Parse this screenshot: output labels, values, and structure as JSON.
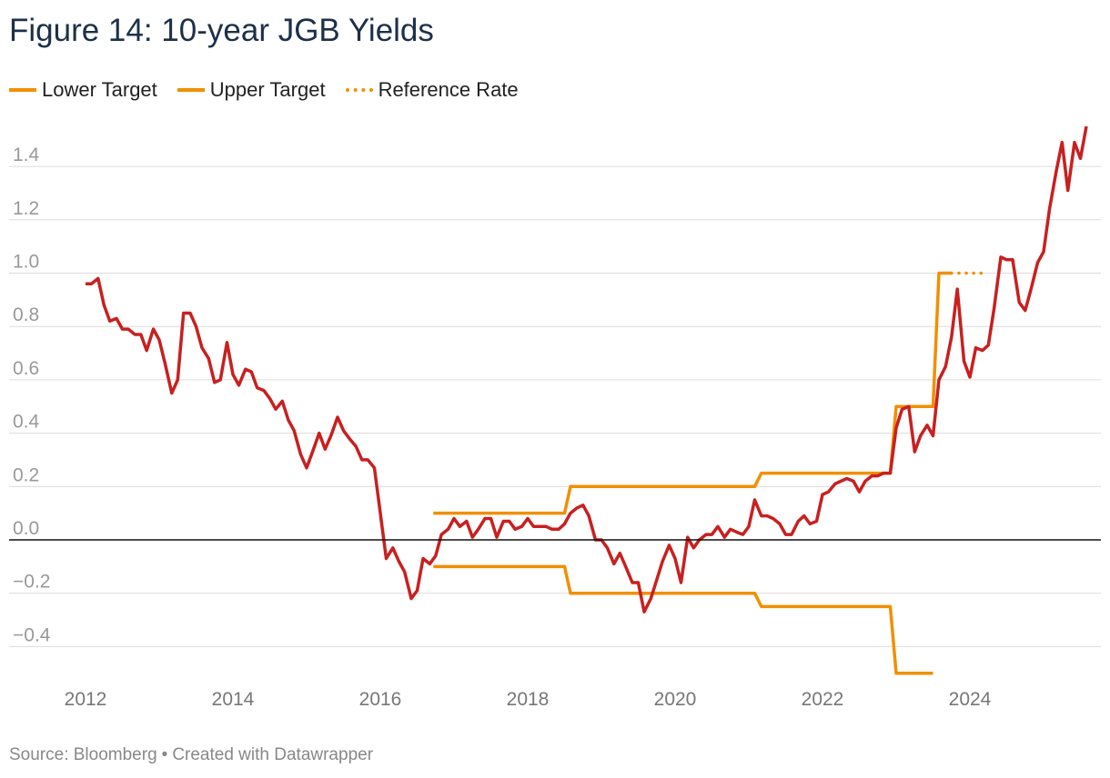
{
  "title": "Figure 14: 10-year JGB Yields",
  "footer": {
    "source": "Source: Bloomberg",
    "separator": "•",
    "credit": "Created with Datawrapper"
  },
  "colors": {
    "yield": "#c8201f",
    "target": "#f18f01",
    "grid": "#dcdcdc",
    "zero_line": "#111111",
    "tick_text": "#999999"
  },
  "chart_data": {
    "type": "line",
    "title": "Figure 14: 10-year JGB Yields",
    "xlabel": "",
    "ylabel": "",
    "xlim": [
      2012,
      2025.7
    ],
    "ylim": [
      -0.5,
      1.55
    ],
    "x_ticks": [
      2012,
      2014,
      2016,
      2018,
      2020,
      2022,
      2024
    ],
    "y_ticks": [
      -0.4,
      -0.2,
      0.0,
      0.2,
      0.4,
      0.6,
      0.8,
      1.0,
      1.2,
      1.4
    ],
    "y_tick_labels": [
      "−0.4",
      "−0.2",
      "0.0",
      "0.2",
      "0.4",
      "0.6",
      "0.8",
      "1.0",
      "1.2",
      "1.4"
    ],
    "grid": true,
    "legend_position": "top-left",
    "legend": [
      {
        "label": "Lower Target",
        "style": "solid"
      },
      {
        "label": "Upper Target",
        "style": "solid"
      },
      {
        "label": "Reference Rate",
        "style": "dotted"
      }
    ],
    "series": [
      {
        "name": "Lower Target",
        "color": "#f18f01",
        "style": "solid",
        "points": [
          [
            2016.72,
            -0.1
          ],
          [
            2018.5,
            -0.1
          ],
          [
            2018.58,
            -0.2
          ],
          [
            2021.08,
            -0.2
          ],
          [
            2021.17,
            -0.25
          ],
          [
            2022.92,
            -0.25
          ],
          [
            2023.0,
            -0.5
          ],
          [
            2023.5,
            -0.5
          ]
        ]
      },
      {
        "name": "Upper Target",
        "color": "#f18f01",
        "style": "solid",
        "points": [
          [
            2016.72,
            0.1
          ],
          [
            2018.5,
            0.1
          ],
          [
            2018.58,
            0.2
          ],
          [
            2021.08,
            0.2
          ],
          [
            2021.17,
            0.25
          ],
          [
            2022.92,
            0.25
          ],
          [
            2023.0,
            0.5
          ],
          [
            2023.5,
            0.5
          ],
          [
            2023.58,
            1.0
          ],
          [
            2023.75,
            1.0
          ]
        ]
      },
      {
        "name": "Reference Rate",
        "color": "#f18f01",
        "style": "dotted",
        "points": [
          [
            2023.75,
            1.0
          ],
          [
            2024.25,
            1.0
          ]
        ]
      },
      {
        "name": "10-year JGB Yield",
        "color": "#c8201f",
        "style": "solid",
        "points": [
          [
            2012.0,
            0.96
          ],
          [
            2012.08,
            0.96
          ],
          [
            2012.17,
            0.98
          ],
          [
            2012.25,
            0.88
          ],
          [
            2012.33,
            0.82
          ],
          [
            2012.42,
            0.83
          ],
          [
            2012.5,
            0.79
          ],
          [
            2012.58,
            0.79
          ],
          [
            2012.67,
            0.77
          ],
          [
            2012.75,
            0.77
          ],
          [
            2012.83,
            0.71
          ],
          [
            2012.92,
            0.79
          ],
          [
            2013.0,
            0.75
          ],
          [
            2013.08,
            0.66
          ],
          [
            2013.17,
            0.55
          ],
          [
            2013.25,
            0.6
          ],
          [
            2013.33,
            0.85
          ],
          [
            2013.42,
            0.85
          ],
          [
            2013.5,
            0.8
          ],
          [
            2013.58,
            0.72
          ],
          [
            2013.67,
            0.68
          ],
          [
            2013.75,
            0.59
          ],
          [
            2013.83,
            0.6
          ],
          [
            2013.92,
            0.74
          ],
          [
            2014.0,
            0.62
          ],
          [
            2014.08,
            0.58
          ],
          [
            2014.17,
            0.64
          ],
          [
            2014.25,
            0.63
          ],
          [
            2014.33,
            0.57
          ],
          [
            2014.42,
            0.56
          ],
          [
            2014.5,
            0.53
          ],
          [
            2014.58,
            0.49
          ],
          [
            2014.67,
            0.52
          ],
          [
            2014.75,
            0.45
          ],
          [
            2014.83,
            0.41
          ],
          [
            2014.92,
            0.32
          ],
          [
            2015.0,
            0.27
          ],
          [
            2015.08,
            0.33
          ],
          [
            2015.17,
            0.4
          ],
          [
            2015.25,
            0.34
          ],
          [
            2015.33,
            0.39
          ],
          [
            2015.42,
            0.46
          ],
          [
            2015.5,
            0.41
          ],
          [
            2015.58,
            0.38
          ],
          [
            2015.67,
            0.35
          ],
          [
            2015.75,
            0.3
          ],
          [
            2015.83,
            0.3
          ],
          [
            2015.92,
            0.27
          ],
          [
            2016.0,
            0.1
          ],
          [
            2016.08,
            -0.07
          ],
          [
            2016.17,
            -0.03
          ],
          [
            2016.25,
            -0.08
          ],
          [
            2016.33,
            -0.12
          ],
          [
            2016.42,
            -0.22
          ],
          [
            2016.5,
            -0.19
          ],
          [
            2016.58,
            -0.07
          ],
          [
            2016.67,
            -0.09
          ],
          [
            2016.75,
            -0.06
          ],
          [
            2016.83,
            0.02
          ],
          [
            2016.92,
            0.04
          ],
          [
            2017.0,
            0.08
          ],
          [
            2017.08,
            0.05
          ],
          [
            2017.17,
            0.07
          ],
          [
            2017.25,
            0.01
          ],
          [
            2017.33,
            0.04
          ],
          [
            2017.42,
            0.08
          ],
          [
            2017.5,
            0.08
          ],
          [
            2017.58,
            0.01
          ],
          [
            2017.67,
            0.07
          ],
          [
            2017.75,
            0.07
          ],
          [
            2017.83,
            0.04
          ],
          [
            2017.92,
            0.05
          ],
          [
            2018.0,
            0.08
          ],
          [
            2018.08,
            0.05
          ],
          [
            2018.17,
            0.05
          ],
          [
            2018.25,
            0.05
          ],
          [
            2018.33,
            0.04
          ],
          [
            2018.42,
            0.04
          ],
          [
            2018.5,
            0.06
          ],
          [
            2018.58,
            0.1
          ],
          [
            2018.67,
            0.12
          ],
          [
            2018.75,
            0.13
          ],
          [
            2018.83,
            0.09
          ],
          [
            2018.92,
            0.0
          ],
          [
            2019.0,
            0.0
          ],
          [
            2019.08,
            -0.03
          ],
          [
            2019.17,
            -0.09
          ],
          [
            2019.25,
            -0.05
          ],
          [
            2019.33,
            -0.1
          ],
          [
            2019.42,
            -0.16
          ],
          [
            2019.5,
            -0.16
          ],
          [
            2019.58,
            -0.27
          ],
          [
            2019.67,
            -0.22
          ],
          [
            2019.75,
            -0.15
          ],
          [
            2019.83,
            -0.08
          ],
          [
            2019.92,
            -0.02
          ],
          [
            2020.0,
            -0.07
          ],
          [
            2020.08,
            -0.16
          ],
          [
            2020.17,
            0.01
          ],
          [
            2020.25,
            -0.03
          ],
          [
            2020.33,
            0.0
          ],
          [
            2020.42,
            0.02
          ],
          [
            2020.5,
            0.02
          ],
          [
            2020.58,
            0.05
          ],
          [
            2020.67,
            0.01
          ],
          [
            2020.75,
            0.04
          ],
          [
            2020.83,
            0.03
          ],
          [
            2020.92,
            0.02
          ],
          [
            2021.0,
            0.05
          ],
          [
            2021.08,
            0.15
          ],
          [
            2021.17,
            0.09
          ],
          [
            2021.25,
            0.09
          ],
          [
            2021.33,
            0.08
          ],
          [
            2021.42,
            0.06
          ],
          [
            2021.5,
            0.02
          ],
          [
            2021.58,
            0.02
          ],
          [
            2021.67,
            0.07
          ],
          [
            2021.75,
            0.09
          ],
          [
            2021.83,
            0.06
          ],
          [
            2021.92,
            0.07
          ],
          [
            2022.0,
            0.17
          ],
          [
            2022.08,
            0.18
          ],
          [
            2022.17,
            0.21
          ],
          [
            2022.25,
            0.22
          ],
          [
            2022.33,
            0.23
          ],
          [
            2022.42,
            0.22
          ],
          [
            2022.5,
            0.18
          ],
          [
            2022.58,
            0.22
          ],
          [
            2022.67,
            0.24
          ],
          [
            2022.75,
            0.24
          ],
          [
            2022.83,
            0.25
          ],
          [
            2022.92,
            0.25
          ],
          [
            2023.0,
            0.42
          ],
          [
            2023.08,
            0.49
          ],
          [
            2023.17,
            0.5
          ],
          [
            2023.25,
            0.33
          ],
          [
            2023.33,
            0.39
          ],
          [
            2023.42,
            0.43
          ],
          [
            2023.5,
            0.39
          ],
          [
            2023.58,
            0.6
          ],
          [
            2023.67,
            0.65
          ],
          [
            2023.75,
            0.76
          ],
          [
            2023.83,
            0.94
          ],
          [
            2023.92,
            0.67
          ],
          [
            2024.0,
            0.61
          ],
          [
            2024.08,
            0.72
          ],
          [
            2024.17,
            0.71
          ],
          [
            2024.25,
            0.73
          ],
          [
            2024.33,
            0.87
          ],
          [
            2024.42,
            1.06
          ],
          [
            2024.5,
            1.05
          ],
          [
            2024.58,
            1.05
          ],
          [
            2024.67,
            0.89
          ],
          [
            2024.75,
            0.86
          ],
          [
            2024.83,
            0.94
          ],
          [
            2024.92,
            1.04
          ],
          [
            2025.0,
            1.08
          ],
          [
            2025.08,
            1.24
          ],
          [
            2025.17,
            1.38
          ],
          [
            2025.25,
            1.49
          ],
          [
            2025.33,
            1.31
          ],
          [
            2025.42,
            1.49
          ],
          [
            2025.5,
            1.43
          ],
          [
            2025.58,
            1.55
          ]
        ]
      }
    ]
  }
}
